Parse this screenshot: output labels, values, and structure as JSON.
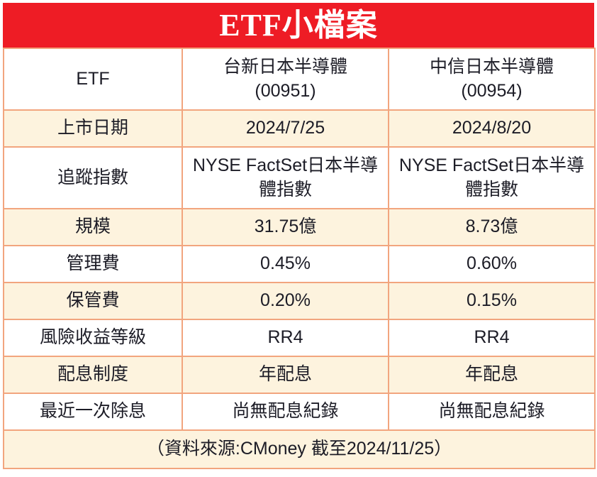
{
  "chart_data": {
    "type": "table",
    "title": "ETF小檔案",
    "columns": [
      "ETF",
      "台新日本半導體 (00951)",
      "中信日本半導體 (00954)"
    ],
    "rows": [
      {
        "label": "ETF",
        "values": [
          "台新日本半導體\n(00951)",
          "中信日本半導體\n(00954)"
        ]
      },
      {
        "label": "上市日期",
        "values": [
          "2024/7/25",
          "2024/8/20"
        ]
      },
      {
        "label": "追蹤指數",
        "values": [
          "NYSE FactSet日本半導體指數",
          "NYSE FactSet日本半導體指數"
        ]
      },
      {
        "label": "規模",
        "values": [
          "31.75億",
          "8.73億"
        ]
      },
      {
        "label": "管理費",
        "values": [
          "0.45%",
          "0.60%"
        ]
      },
      {
        "label": "保管費",
        "values": [
          "0.20%",
          "0.15%"
        ]
      },
      {
        "label": "風險收益等級",
        "values": [
          "RR4",
          "RR4"
        ]
      },
      {
        "label": "配息制度",
        "values": [
          "年配息",
          "年配息"
        ]
      },
      {
        "label": "最近一次除息",
        "values": [
          "尚無配息紀錄",
          "尚無配息紀錄"
        ]
      }
    ],
    "footer": "（資料來源:CMoney 截至2024/11/25）",
    "layout": {
      "legend": "none",
      "grid": "on",
      "alternating_rows": true
    }
  },
  "colors": {
    "header_bg": "#EE1C25",
    "title_text": "#FFFFFF",
    "alt_row_bg": "#FDF3DE",
    "border": "#F2A57E",
    "text": "#1C1C26"
  }
}
